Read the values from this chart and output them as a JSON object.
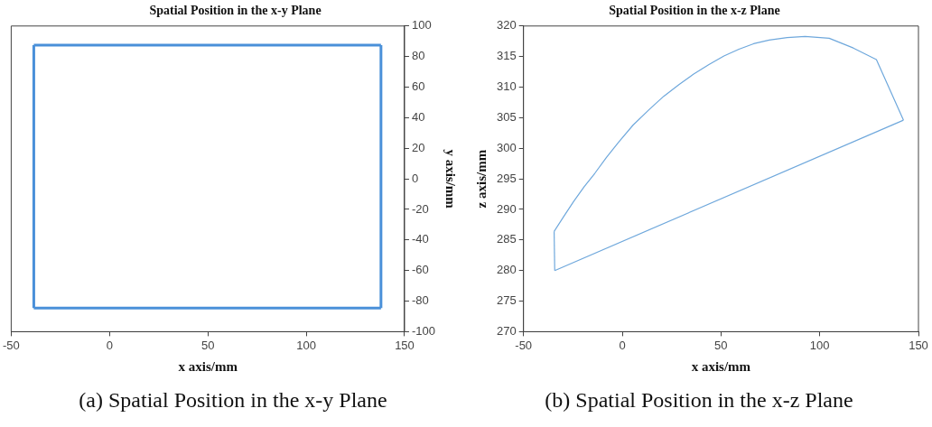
{
  "chart_data": [
    {
      "type": "line",
      "title": "Spatial Position in the x-y Plane",
      "xlabel": "x axis/mm",
      "y2label": "y axis/mm",
      "annotations": [
        "(a) Spatial Position in the x-y Plane"
      ],
      "series": [
        {
          "color": "#4a90d9",
          "axis": "y2",
          "x": [
            -38.5,
            138
          ],
          "values": [
            87.5,
            87.5
          ]
        },
        {
          "color": "#4a90d9",
          "axis": "y2",
          "x": [
            -38.5,
            138
          ],
          "values": [
            -84.5,
            -84.5
          ]
        },
        {
          "color": "#4a90d9",
          "axis": "y2",
          "x": [
            -38.5,
            -38.5
          ],
          "values": [
            -84.5,
            87.5
          ]
        },
        {
          "color": "#4a90d9",
          "axis": "y2",
          "x": [
            138,
            138
          ],
          "values": [
            -84.5,
            87.5
          ]
        }
      ],
      "xlim": [
        -50,
        150
      ],
      "xticks": [
        -50,
        0,
        50,
        100,
        150
      ],
      "y2lim": [
        -100,
        100
      ],
      "y2ticks": [
        -100,
        -80,
        -60,
        -40,
        -20,
        0,
        20,
        40,
        60,
        80,
        100
      ],
      "grid": false,
      "legend": false,
      "marker": "none",
      "line_style": "solid"
    },
    {
      "type": "line",
      "title": "Spatial Position in the x-z Plane",
      "xlabel": "x axis/mm",
      "ylabel": "z axis/mm",
      "annotations": [
        "(b) Spatial Position in the x-z Plane"
      ],
      "series": [
        {
          "color": "#6fa8dc",
          "x": [
            -34.5,
            -29.5,
            -24.6,
            -19.3,
            -13.9,
            -8.0,
            -1.8,
            5.5,
            13.5,
            21.0,
            28.7,
            36.0,
            43.9,
            51.5,
            59.1,
            66.5,
            74.4,
            83.5,
            92.6,
            104.8,
            117.0,
            128.7,
            142.4
          ],
          "values": [
            286.4,
            288.9,
            291.3,
            293.7,
            295.9,
            298.5,
            301.0,
            303.8,
            306.3,
            308.5,
            310.4,
            312.1,
            313.7,
            315.1,
            316.2,
            317.1,
            317.7,
            318.1,
            318.3,
            318.0,
            316.4,
            314.5,
            304.6
          ]
        },
        {
          "color": "#6fa8dc",
          "x": [
            -34.2,
            142.4
          ],
          "values": [
            280.0,
            304.6
          ]
        },
        {
          "color": "#6fa8dc",
          "x": [
            -34.5,
            -34.2
          ],
          "values": [
            286.4,
            280.0
          ]
        }
      ],
      "xlim": [
        -50,
        150
      ],
      "xticks": [
        -50,
        0,
        50,
        100,
        150
      ],
      "ylim": [
        270,
        320
      ],
      "yticks": [
        270,
        275,
        280,
        285,
        290,
        295,
        300,
        305,
        310,
        315,
        320
      ],
      "grid": false,
      "legend": false,
      "marker": "none",
      "line_style": "solid"
    }
  ]
}
